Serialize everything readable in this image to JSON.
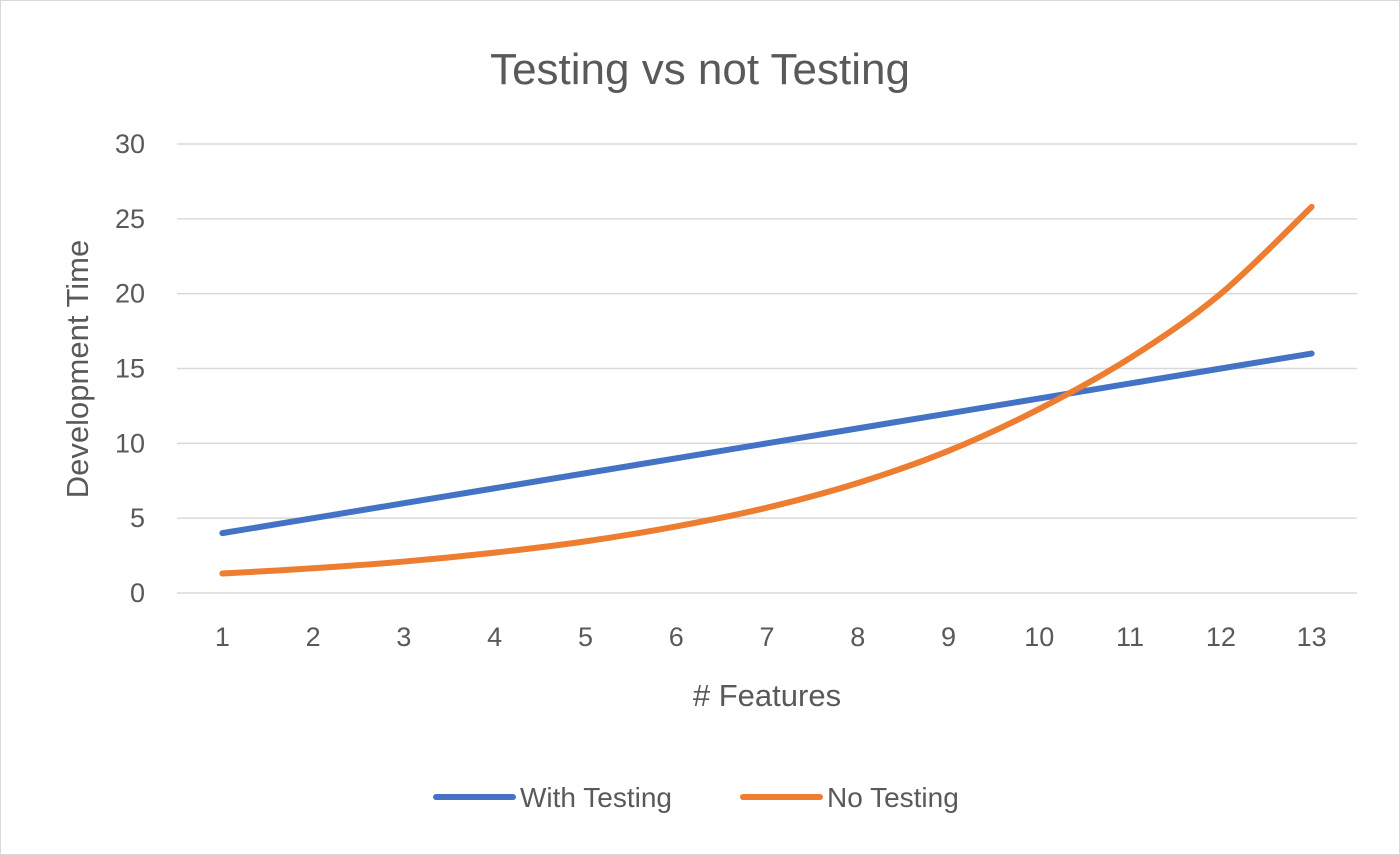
{
  "chart_data": {
    "type": "line",
    "title": "Testing vs not Testing",
    "xlabel": "# Features",
    "ylabel": "Development Time",
    "categories": [
      "1",
      "2",
      "3",
      "4",
      "5",
      "6",
      "7",
      "8",
      "9",
      "10",
      "11",
      "12",
      "13"
    ],
    "ylim": [
      0,
      30
    ],
    "yticks": [
      "0",
      "5",
      "10",
      "15",
      "20",
      "25",
      "30"
    ],
    "grid": true,
    "legend_position": "bottom",
    "series": [
      {
        "name": "With Testing",
        "color": "#4472c4",
        "values": [
          4,
          5,
          6,
          7,
          8,
          9,
          10,
          11,
          12,
          13,
          14,
          15,
          16
        ]
      },
      {
        "name": "No Testing",
        "color": "#ed7d31",
        "values": [
          1.3,
          1.65,
          2.1,
          2.7,
          3.45,
          4.45,
          5.7,
          7.35,
          9.5,
          12.3,
          15.7,
          20,
          25.8
        ]
      }
    ]
  }
}
